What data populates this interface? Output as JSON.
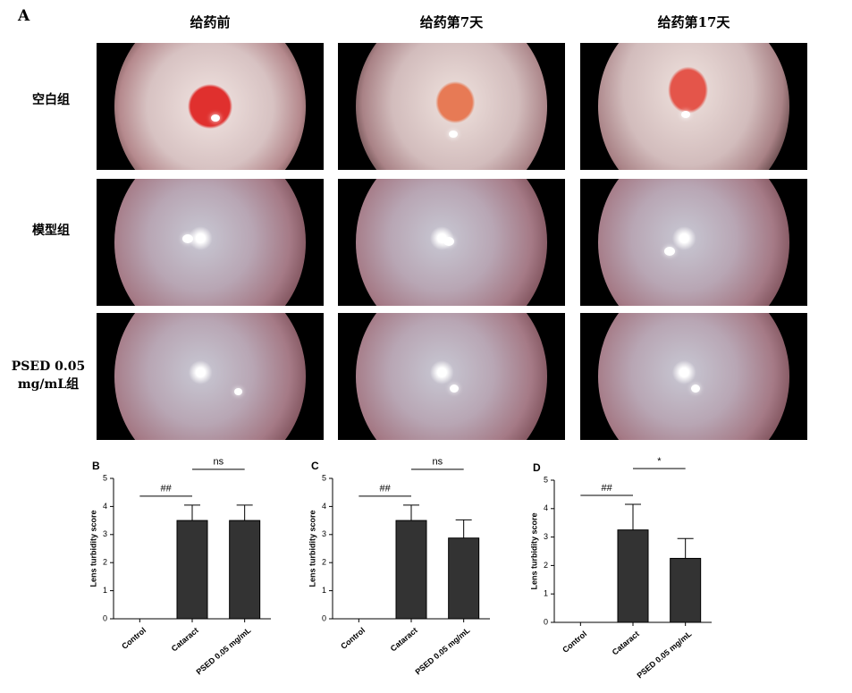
{
  "panel_a": {
    "label": "A",
    "columns": [
      "给药前",
      "给药第7天",
      "给药第17天"
    ],
    "rows": [
      "空白组",
      "模型组",
      "PSED 0.05 mg/mL组"
    ]
  },
  "chart_data": [
    {
      "type": "bar",
      "label": "B",
      "ylabel": "Lens turbidity score",
      "categories": [
        "Control",
        "Cataract",
        "PSED 0.05 mg/mL"
      ],
      "values": [
        0,
        3.5,
        3.5
      ],
      "errors": [
        0,
        0.55,
        0.55
      ],
      "color": "#333333",
      "ylim": [
        0,
        5
      ],
      "yticks": [
        0,
        1,
        2,
        3,
        4,
        5
      ],
      "brackets": [
        {
          "between": [
            0,
            1
          ],
          "label": "##"
        },
        {
          "between": [
            1,
            2
          ],
          "label": "ns"
        }
      ]
    },
    {
      "type": "bar",
      "label": "C",
      "ylabel": "Lens turbidity score",
      "categories": [
        "Control",
        "Cataract",
        "PSED 0.05 mg/mL"
      ],
      "values": [
        0,
        3.5,
        2.875
      ],
      "errors": [
        0,
        0.55,
        0.65
      ],
      "color": "#333333",
      "ylim": [
        0,
        5
      ],
      "yticks": [
        0,
        1,
        2,
        3,
        4,
        5
      ],
      "brackets": [
        {
          "between": [
            0,
            1
          ],
          "label": "##"
        },
        {
          "between": [
            1,
            2
          ],
          "label": "ns"
        }
      ]
    },
    {
      "type": "bar",
      "label": "D",
      "ylabel": "Lens turbidity score",
      "categories": [
        "Control",
        "Cataract",
        "PSED 0.05 mg/mL"
      ],
      "values": [
        0,
        3.25,
        2.25
      ],
      "errors": [
        0,
        0.9,
        0.7
      ],
      "color": "#333333",
      "ylim": [
        0,
        5
      ],
      "yticks": [
        0,
        1,
        2,
        3,
        4,
        5
      ],
      "brackets": [
        {
          "between": [
            0,
            1
          ],
          "label": "##"
        },
        {
          "between": [
            1,
            2
          ],
          "label": "*"
        }
      ]
    }
  ]
}
